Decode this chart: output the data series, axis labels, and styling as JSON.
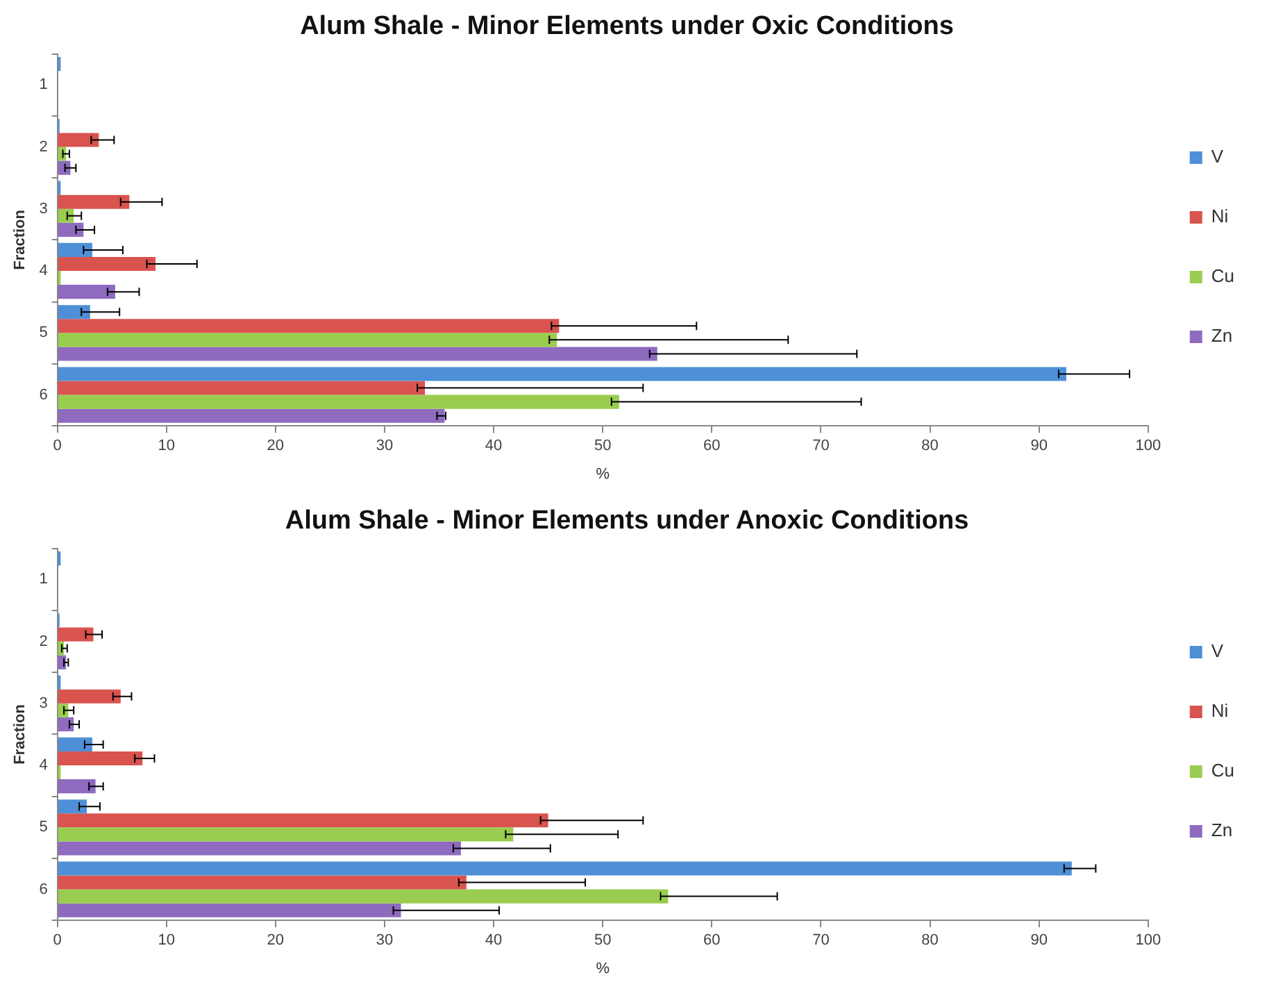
{
  "chart_data": [
    {
      "type": "bar",
      "orientation": "horizontal",
      "title": "Alum Shale - Minor Elements under Oxic Conditions",
      "xlabel": "%",
      "ylabel": "Fraction",
      "categories": [
        "1",
        "2",
        "3",
        "4",
        "5",
        "6"
      ],
      "xlim": [
        0,
        100
      ],
      "xticks": [
        0,
        10,
        20,
        30,
        40,
        50,
        60,
        70,
        80,
        90,
        100
      ],
      "grid": false,
      "legend": "right",
      "series": [
        {
          "name": "V",
          "color": "#4f8fd8",
          "values": [
            0.3,
            0.2,
            0.3,
            3.2,
            3,
            92.5
          ],
          "errors": [
            null,
            null,
            null,
            [
              2.4,
              6
            ],
            [
              2.2,
              5.7
            ],
            [
              91.8,
              98.3
            ]
          ]
        },
        {
          "name": "Ni",
          "color": "#d9534f",
          "values": [
            0,
            3.8,
            6.6,
            9,
            46,
            33.7
          ],
          "errors": [
            null,
            [
              3.1,
              5.2
            ],
            [
              5.8,
              9.6
            ],
            [
              8.2,
              12.8
            ],
            [
              45.3,
              58.6
            ],
            [
              33,
              53.7
            ]
          ]
        },
        {
          "name": "Cu",
          "color": "#9acd4f",
          "values": [
            0,
            0.8,
            1.5,
            0.3,
            45.8,
            51.5
          ],
          "errors": [
            null,
            [
              0.5,
              1.1
            ],
            [
              0.9,
              2.2
            ],
            null,
            [
              45.1,
              67
            ],
            [
              50.8,
              73.7
            ]
          ]
        },
        {
          "name": "Zn",
          "color": "#8e6bbf",
          "values": [
            0,
            1.2,
            2.4,
            5.3,
            55,
            35.5
          ],
          "errors": [
            null,
            [
              0.7,
              1.7
            ],
            [
              1.7,
              3.4
            ],
            [
              4.6,
              7.5
            ],
            [
              54.3,
              73.3
            ],
            [
              34.8,
              35.6
            ]
          ]
        }
      ]
    },
    {
      "type": "bar",
      "orientation": "horizontal",
      "title": "Alum Shale - Minor Elements under Anoxic Conditions",
      "xlabel": "%",
      "ylabel": "Fraction",
      "categories": [
        "1",
        "2",
        "3",
        "4",
        "5",
        "6"
      ],
      "xlim": [
        0,
        100
      ],
      "xticks": [
        0,
        10,
        20,
        30,
        40,
        50,
        60,
        70,
        80,
        90,
        100
      ],
      "grid": false,
      "legend": "right",
      "series": [
        {
          "name": "V",
          "color": "#4f8fd8",
          "values": [
            0.3,
            0.2,
            0.3,
            3.2,
            2.7,
            93
          ],
          "errors": [
            null,
            null,
            null,
            [
              2.5,
              4.2
            ],
            [
              2,
              3.9
            ],
            [
              92.3,
              95.2
            ]
          ]
        },
        {
          "name": "Ni",
          "color": "#d9534f",
          "values": [
            0,
            3.3,
            5.8,
            7.8,
            45,
            37.5
          ],
          "errors": [
            null,
            [
              2.6,
              4.1
            ],
            [
              5.1,
              6.8
            ],
            [
              7.1,
              8.9
            ],
            [
              44.3,
              53.7
            ],
            [
              36.8,
              48.4
            ]
          ]
        },
        {
          "name": "Cu",
          "color": "#9acd4f",
          "values": [
            0,
            0.6,
            1,
            0.3,
            41.8,
            56
          ],
          "errors": [
            null,
            [
              0.4,
              0.9
            ],
            [
              0.6,
              1.5
            ],
            null,
            [
              41.1,
              51.4
            ],
            [
              55.3,
              66
            ]
          ]
        },
        {
          "name": "Zn",
          "color": "#8e6bbf",
          "values": [
            0,
            0.8,
            1.5,
            3.5,
            37,
            31.5
          ],
          "errors": [
            null,
            [
              0.6,
              1
            ],
            [
              1.1,
              2
            ],
            [
              2.9,
              4.2
            ],
            [
              36.3,
              45.2
            ],
            [
              30.8,
              40.5
            ]
          ]
        }
      ]
    }
  ]
}
